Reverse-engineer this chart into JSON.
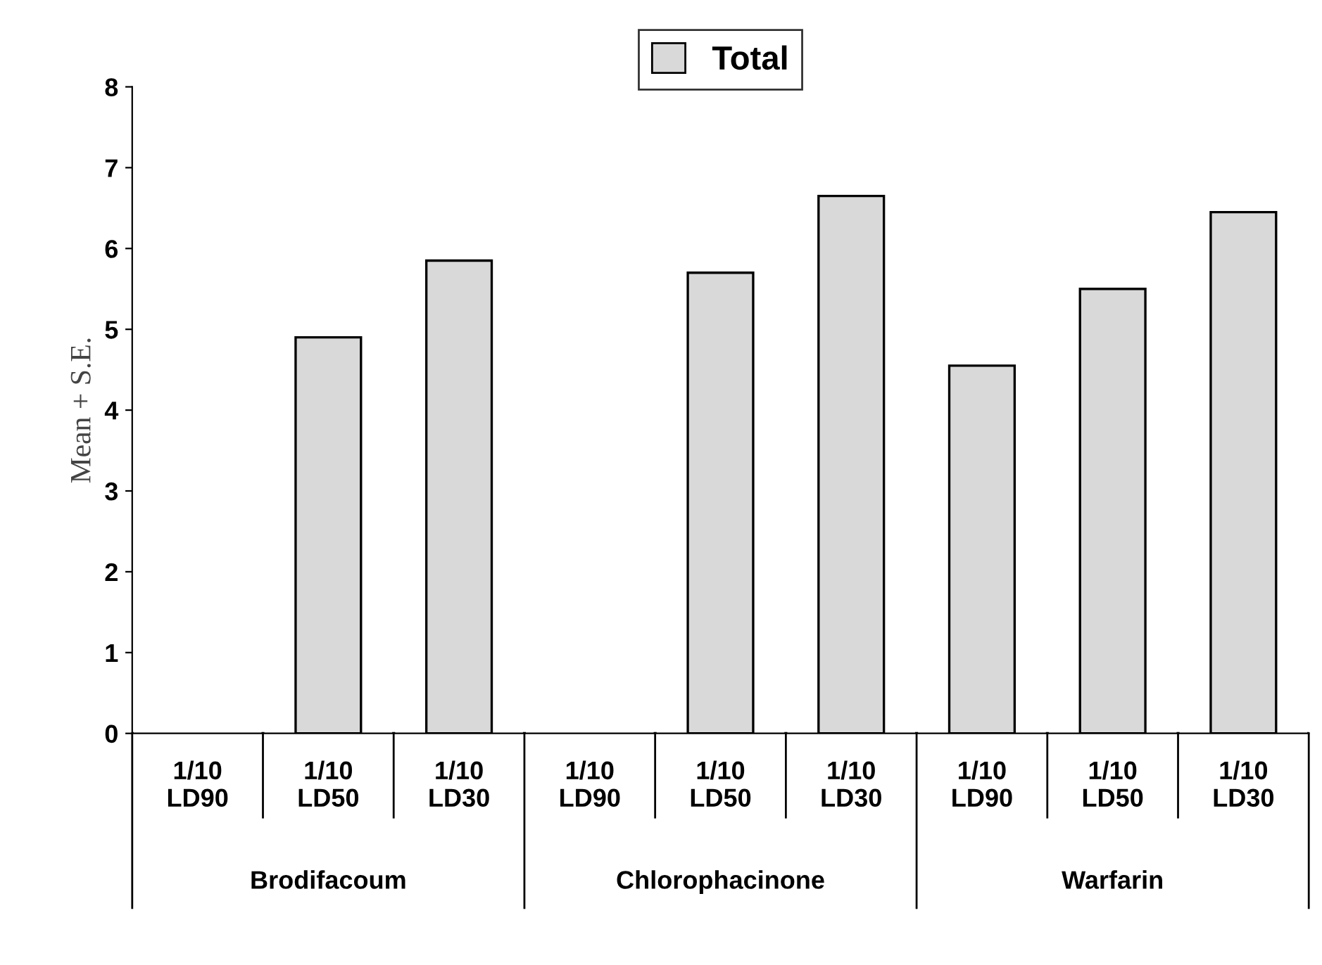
{
  "chart_data": {
    "type": "bar",
    "ylabel": "Mean + S.E.",
    "categories": [
      "1/10\nLD90",
      "1/10\nLD50",
      "1/10\nLD30",
      "1/10\nLD90",
      "1/10\nLD50",
      "1/10\nLD30",
      "1/10\nLD90",
      "1/10\nLD50",
      "1/10\nLD30"
    ],
    "series": [
      {
        "name": "Total",
        "color": "#d9d9d9",
        "values": [
          null,
          4.9,
          5.85,
          null,
          5.7,
          6.65,
          4.55,
          5.5,
          6.45
        ]
      }
    ],
    "annotations": [
      "Brodifacoum",
      "Chlorophacinone",
      "Warfarin"
    ],
    "ylim": [
      0,
      8
    ],
    "yticks": [
      0,
      1,
      2,
      3,
      4,
      5,
      6,
      7,
      8
    ],
    "grid": false,
    "legend": "top"
  }
}
